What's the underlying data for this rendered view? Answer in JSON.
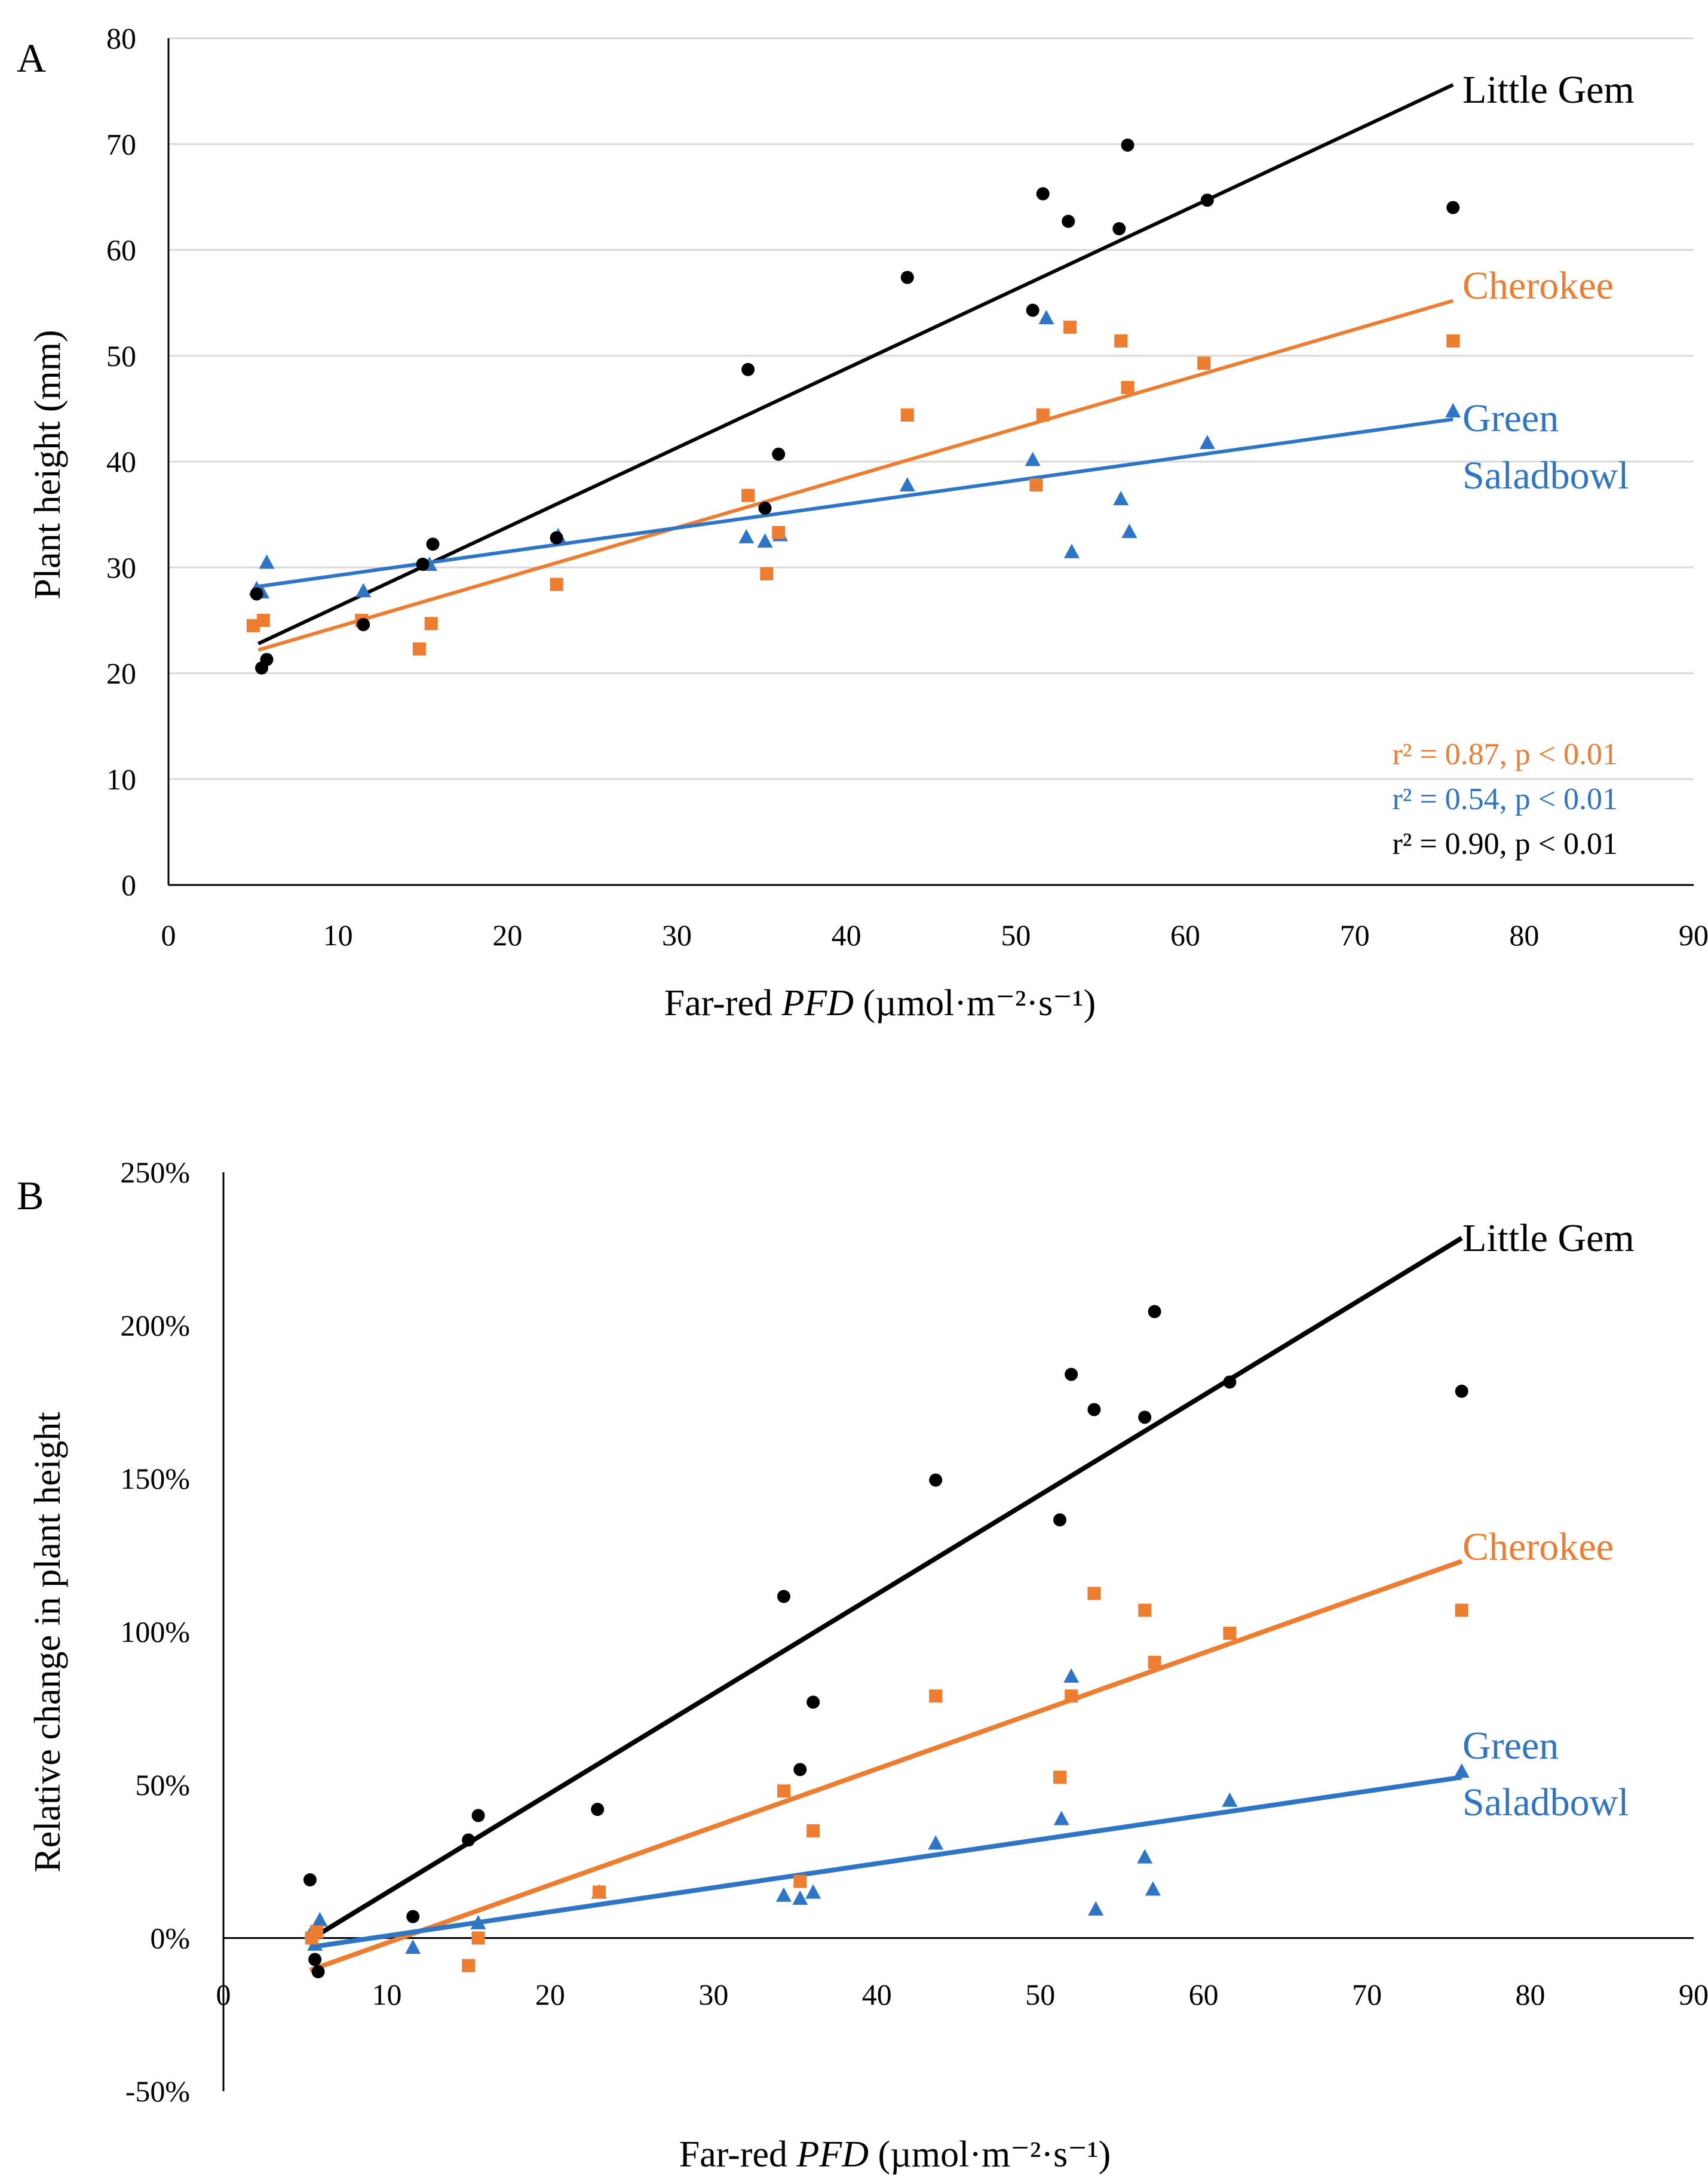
{
  "chart_data": [
    {
      "panel": "A",
      "type": "scatter",
      "xlabel_pre": "Far-red ",
      "xlabel_it": "PFD",
      "xlabel_post": " (µmol·m⁻²·s⁻¹)",
      "ylabel": "Plant height (mm)",
      "xlim": [
        0,
        90
      ],
      "ylim": [
        0,
        80
      ],
      "xticks": [
        "0",
        "10",
        "20",
        "30",
        "40",
        "50",
        "60",
        "70",
        "80",
        "90"
      ],
      "yticks": [
        "0",
        "10",
        "20",
        "30",
        "40",
        "50",
        "60",
        "70",
        "80"
      ],
      "grid": true,
      "series": [
        {
          "name": "Little Gem",
          "label": "Little Gem",
          "label2": "",
          "color": "#000000",
          "marker": "circle",
          "stat": "r² = 0.90, p < 0.01",
          "fit": [
            [
              5.3,
              22.8
            ],
            [
              75.8,
              75.6
            ]
          ],
          "points": [
            [
              5.2,
              27.5
            ],
            [
              5.5,
              20.5
            ],
            [
              5.8,
              21.3
            ],
            [
              11.5,
              24.6
            ],
            [
              15,
              30.3
            ],
            [
              15.6,
              32.2
            ],
            [
              22.9,
              32.8
            ],
            [
              34.2,
              48.7
            ],
            [
              35.2,
              35.6
            ],
            [
              36,
              40.7
            ],
            [
              43.6,
              57.4
            ],
            [
              51,
              54.3
            ],
            [
              51.6,
              65.3
            ],
            [
              53.1,
              62.7
            ],
            [
              56.1,
              62
            ],
            [
              56.6,
              69.9
            ],
            [
              61.3,
              64.7
            ],
            [
              75.8,
              64
            ]
          ]
        },
        {
          "name": "Cherokee",
          "label": "Cherokee",
          "label2": "",
          "color": "#ED7D31",
          "marker": "square",
          "stat": "r² = 0.87, p < 0.01",
          "fit": [
            [
              5.3,
              22.2
            ],
            [
              75.8,
              55.2
            ]
          ],
          "points": [
            [
              5,
              24.5
            ],
            [
              5.6,
              25
            ],
            [
              11.4,
              25
            ],
            [
              14.8,
              22.3
            ],
            [
              15.5,
              24.7
            ],
            [
              22.9,
              28.4
            ],
            [
              34.2,
              36.8
            ],
            [
              35.3,
              29.4
            ],
            [
              36,
              33.3
            ],
            [
              43.6,
              44.4
            ],
            [
              51.2,
              37.8
            ],
            [
              51.6,
              44.4
            ],
            [
              53.2,
              52.7
            ],
            [
              56.2,
              51.4
            ],
            [
              56.6,
              47
            ],
            [
              61.1,
              49.3
            ],
            [
              75.8,
              51.4
            ]
          ]
        },
        {
          "name": "Green Saladbowl",
          "label": "Green",
          "label2": "Saladbowl",
          "color": "#2E75C5",
          "marker": "triangle",
          "stat": "r² = 0.54, p < 0.01",
          "fit": [
            [
              5.3,
              28.2
            ],
            [
              75.8,
              44.0
            ]
          ],
          "points": [
            [
              5.2,
              28
            ],
            [
              5.5,
              27.7
            ],
            [
              5.8,
              30.5
            ],
            [
              11.5,
              27.8
            ],
            [
              15.4,
              30.3
            ],
            [
              23,
              33
            ],
            [
              34.1,
              32.9
            ],
            [
              35.2,
              32.5
            ],
            [
              36.1,
              33.1
            ],
            [
              43.6,
              37.8
            ],
            [
              51,
              40.2
            ],
            [
              51.8,
              53.6
            ],
            [
              53.3,
              31.5
            ],
            [
              56.2,
              36.5
            ],
            [
              56.7,
              33.4
            ],
            [
              61.3,
              41.8
            ],
            [
              75.8,
              44.8
            ]
          ]
        }
      ]
    },
    {
      "panel": "B",
      "type": "scatter",
      "xlabel_pre": "Far-red ",
      "xlabel_it": "PFD",
      "xlabel_post": " (µmol·m⁻²·s⁻¹)",
      "ylabel": "Relative change in plant height",
      "xlim": [
        0,
        90
      ],
      "ylim": [
        -50,
        250
      ],
      "xticks": [
        "0",
        "10",
        "20",
        "30",
        "40",
        "50",
        "60",
        "70",
        "80",
        "90"
      ],
      "yticks": [
        "-50%",
        "0%",
        "50%",
        "100%",
        "150%",
        "200%",
        "250%"
      ],
      "grid": false,
      "series": [
        {
          "name": "Little Gem",
          "label": "Little Gem",
          "label2": "",
          "color": "#000000",
          "marker": "circle",
          "fit": [
            [
              5.3,
              -0.5
            ],
            [
              75.8,
              228.5
            ]
          ],
          "points": [
            [
              5.3,
              19
            ],
            [
              5.6,
              -7
            ],
            [
              5.8,
              -11
            ],
            [
              11.6,
              7
            ],
            [
              15,
              32
            ],
            [
              15.6,
              40
            ],
            [
              22.9,
              42
            ],
            [
              34.3,
              111.5
            ],
            [
              35.3,
              55
            ],
            [
              36.1,
              77
            ],
            [
              43.6,
              149.5
            ],
            [
              51.2,
              136.5
            ],
            [
              51.9,
              184
            ],
            [
              53.3,
              172.5
            ],
            [
              56.4,
              170
            ],
            [
              57,
              204.5
            ],
            [
              61.6,
              181.5
            ],
            [
              75.8,
              178.5
            ]
          ]
        },
        {
          "name": "Cherokee",
          "label": "Cherokee",
          "label2": "",
          "color": "#ED7D31",
          "marker": "square",
          "fit": [
            [
              5.3,
              -10.5
            ],
            [
              75.8,
              123
            ]
          ],
          "points": [
            [
              5.4,
              0
            ],
            [
              5.7,
              2
            ],
            [
              15,
              -9
            ],
            [
              15.6,
              0
            ],
            [
              23,
              15
            ],
            [
              34.3,
              48
            ],
            [
              35.3,
              18.5
            ],
            [
              36.1,
              35
            ],
            [
              43.6,
              79
            ],
            [
              51.2,
              52.5
            ],
            [
              51.9,
              79
            ],
            [
              53.3,
              112.5
            ],
            [
              56.4,
              107
            ],
            [
              57,
              90
            ],
            [
              61.6,
              99.5
            ],
            [
              75.8,
              107
            ]
          ]
        },
        {
          "name": "Green Saladbowl",
          "label": "Green",
          "label2": "Saladbowl",
          "color": "#2E75C5",
          "marker": "triangle",
          "fit": [
            [
              5.3,
              -3
            ],
            [
              75.8,
              52.5
            ]
          ],
          "points": [
            [
              5.4,
              2
            ],
            [
              5.6,
              -2
            ],
            [
              5.9,
              6
            ],
            [
              11.6,
              -3
            ],
            [
              15.6,
              5
            ],
            [
              23,
              15
            ],
            [
              34.3,
              14
            ],
            [
              35.3,
              13
            ],
            [
              36.1,
              15
            ],
            [
              43.6,
              31
            ],
            [
              51.3,
              39
            ],
            [
              51.9,
              85.5
            ],
            [
              53.4,
              9.5
            ],
            [
              56.4,
              26.5
            ],
            [
              56.9,
              16
            ],
            [
              61.6,
              45
            ],
            [
              75.8,
              54.5
            ]
          ]
        }
      ]
    }
  ]
}
